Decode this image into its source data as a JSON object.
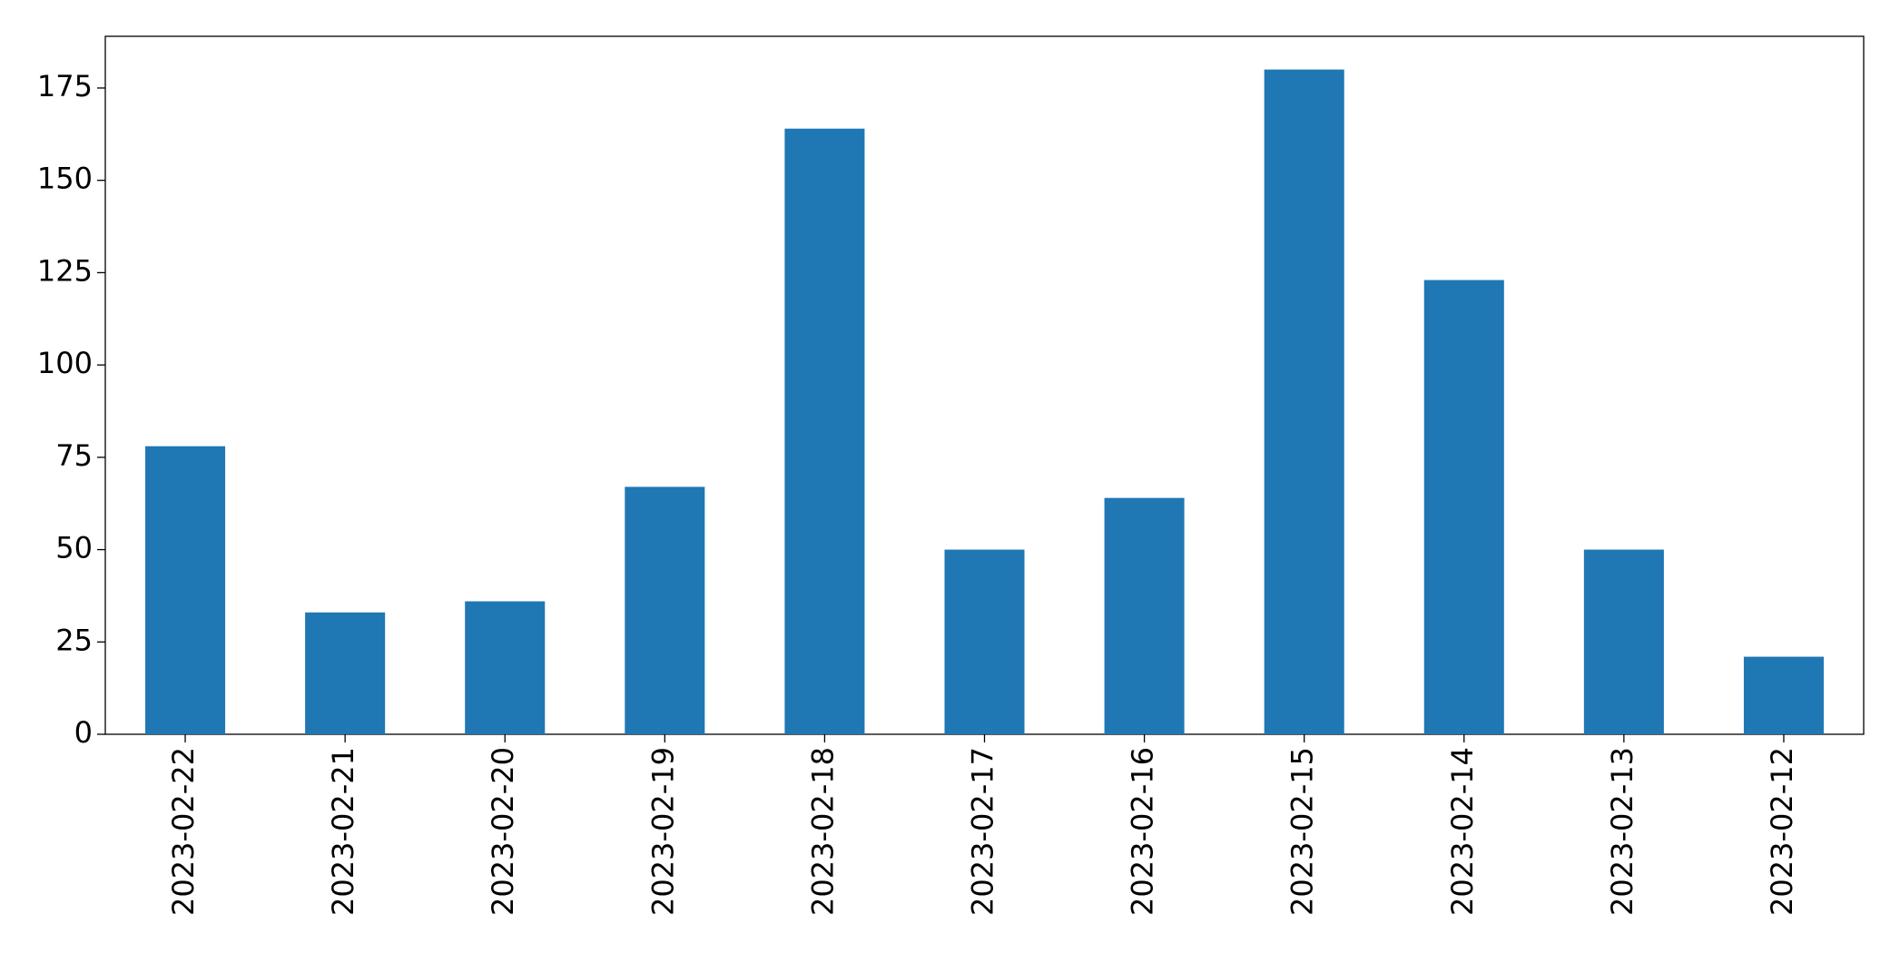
{
  "chart_data": {
    "type": "bar",
    "categories": [
      "2023-02-22",
      "2023-02-21",
      "2023-02-20",
      "2023-02-19",
      "2023-02-18",
      "2023-02-17",
      "2023-02-16",
      "2023-02-15",
      "2023-02-14",
      "2023-02-13",
      "2023-02-12"
    ],
    "values": [
      78,
      33,
      36,
      67,
      164,
      50,
      64,
      180,
      123,
      50,
      21
    ],
    "color": "#1f77b4",
    "ylim": [
      0,
      189
    ],
    "yticks": [
      0,
      25,
      50,
      75,
      100,
      125,
      150,
      175
    ],
    "grid": false
  }
}
